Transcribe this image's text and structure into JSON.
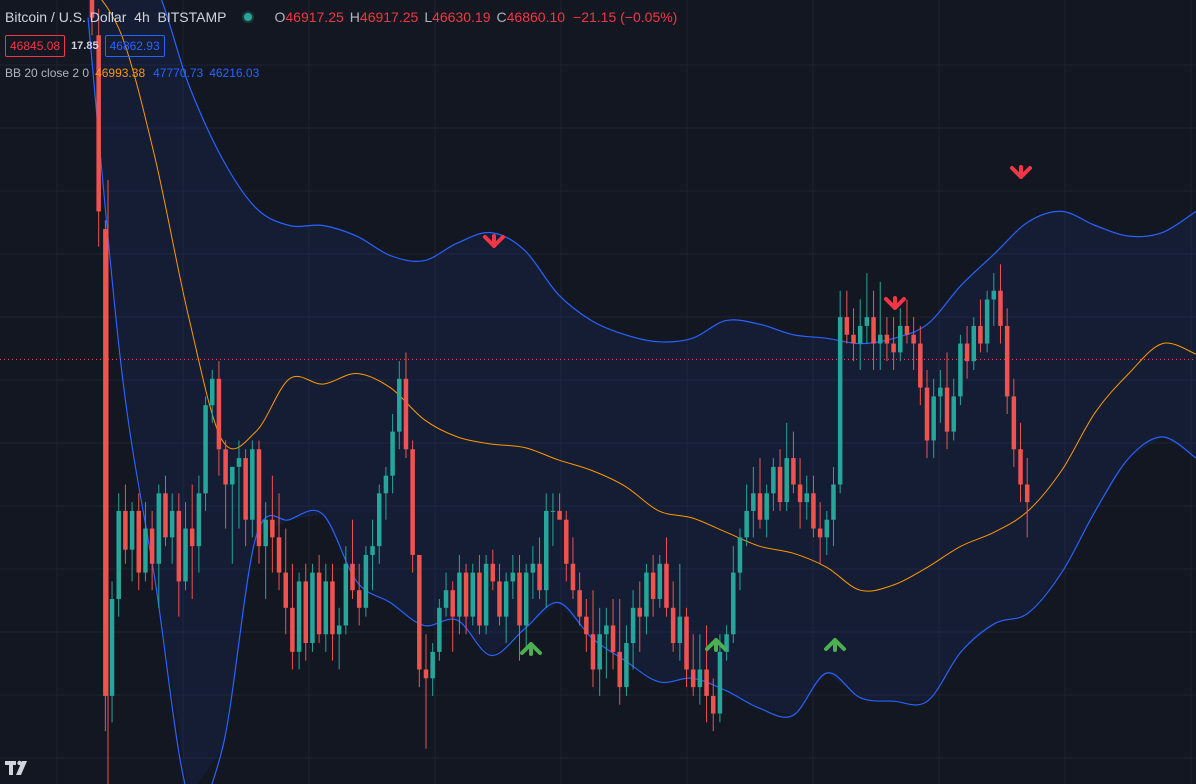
{
  "legend": {
    "symbol": "Bitcoin / U.S. Dollar",
    "interval": "4h",
    "exchange": "BITSTAMP",
    "open_label": "O",
    "open": "46917.25",
    "high_label": "H",
    "high": "46917.25",
    "low_label": "L",
    "low": "46630.19",
    "close_label": "C",
    "close": "46860.10",
    "change": "−21.15 (−0.05%)"
  },
  "quote": {
    "bid": "46845.08",
    "spread": "17.85",
    "ask": "46862.93"
  },
  "indicator": {
    "name": "BB 20 close 2 0",
    "basis": "46993.38",
    "upper": "47770.73",
    "lower": "46216.03"
  },
  "colors": {
    "bull": "#26a69a",
    "bear": "#ef5350",
    "basis": "#ff9800",
    "band": "#2962ff",
    "arrow_down": "#f23645",
    "arrow_up": "#4caf50",
    "background": "#131722",
    "grid": "#1e2330"
  },
  "icons": {
    "status": "market-open-dot-icon",
    "logo": "tradingview-logo-icon"
  },
  "chart_data": {
    "type": "candlestick",
    "y_range": [
      44450,
      48900
    ],
    "price_line": 46860.1,
    "band_upper": [
      49200,
      49080,
      48980,
      48420,
      48000,
      47720,
      47620,
      47620,
      47560,
      47450,
      47420,
      47520,
      47580,
      47480,
      47230,
      47080,
      47000,
      46960,
      46980,
      47080,
      47060,
      47000,
      46980,
      46950,
      46980,
      47060,
      47280,
      47460,
      47640,
      47700,
      47620,
      47560,
      47580,
      47700
    ],
    "band_basis": [
      49000,
      48700,
      48000,
      47100,
      46400,
      46450,
      46750,
      46720,
      46780,
      46700,
      46520,
      46420,
      46380,
      46360,
      46290,
      46230,
      46140,
      46000,
      45960,
      45880,
      45800,
      45760,
      45680,
      45550,
      45580,
      45680,
      45800,
      45880,
      46000,
      46230,
      46560,
      46780,
      46950,
      46890
    ],
    "band_lower": [
      48800,
      46800,
      45600,
      44380,
      44650,
      45850,
      45950,
      45980,
      45600,
      45480,
      45350,
      45380,
      45180,
      45330,
      45480,
      45280,
      45150,
      45030,
      45050,
      44980,
      44880,
      44840,
      45080,
      44940,
      44920,
      44920,
      45200,
      45360,
      45420,
      45650,
      46000,
      46300,
      46420,
      46300
    ],
    "candles": [
      [
        48900,
        48950,
        48700,
        48800
      ],
      [
        48700,
        48850,
        47500,
        47700
      ],
      [
        47600,
        47650,
        44750,
        44950
      ],
      [
        44950,
        45600,
        44800,
        45500
      ],
      [
        45500,
        46100,
        45400,
        46000
      ],
      [
        46000,
        46150,
        45700,
        45780
      ],
      [
        45780,
        46050,
        45600,
        46000
      ],
      [
        46000,
        46100,
        45550,
        45650
      ],
      [
        45650,
        46050,
        45600,
        45900
      ],
      [
        45900,
        46000,
        45550,
        45700
      ],
      [
        45700,
        46150,
        45450,
        46100
      ],
      [
        46100,
        46200,
        45800,
        45850
      ],
      [
        45850,
        46100,
        45700,
        46000
      ],
      [
        46000,
        46100,
        45400,
        45600
      ],
      [
        45600,
        46050,
        45550,
        45900
      ],
      [
        45900,
        46150,
        45500,
        45800
      ],
      [
        45800,
        46200,
        45650,
        46100
      ],
      [
        46100,
        46650,
        46000,
        46600
      ],
      [
        46600,
        46800,
        46500,
        46750
      ],
      [
        46750,
        46850,
        46200,
        46350
      ],
      [
        46350,
        46400,
        45900,
        46150
      ],
      [
        46150,
        46250,
        45700,
        46250
      ],
      [
        46250,
        46400,
        45900,
        46300
      ],
      [
        46300,
        46350,
        45800,
        45950
      ],
      [
        45950,
        46400,
        45850,
        46350
      ],
      [
        46350,
        46400,
        45700,
        45800
      ],
      [
        45800,
        46050,
        45500,
        45950
      ],
      [
        45950,
        46200,
        45650,
        45850
      ],
      [
        45850,
        46100,
        45550,
        45650
      ],
      [
        45650,
        45900,
        45300,
        45450
      ],
      [
        45450,
        45700,
        45100,
        45200
      ],
      [
        45200,
        45650,
        45100,
        45600
      ],
      [
        45600,
        45700,
        45150,
        45250
      ],
      [
        45250,
        45700,
        45200,
        45650
      ],
      [
        45650,
        45750,
        45250,
        45300
      ],
      [
        45300,
        45700,
        45200,
        45600
      ],
      [
        45600,
        45700,
        45150,
        45300
      ],
      [
        45300,
        45450,
        45100,
        45350
      ],
      [
        45350,
        45800,
        45300,
        45700
      ],
      [
        45700,
        45950,
        45500,
        45550
      ],
      [
        45550,
        45700,
        45350,
        45450
      ],
      [
        45450,
        45800,
        45400,
        45750
      ],
      [
        45750,
        45950,
        45550,
        45800
      ],
      [
        45800,
        46150,
        45700,
        46100
      ],
      [
        46100,
        46250,
        45950,
        46200
      ],
      [
        46200,
        46550,
        46100,
        46450
      ],
      [
        46450,
        46850,
        46350,
        46750
      ],
      [
        46750,
        46900,
        46300,
        46350
      ],
      [
        46350,
        46400,
        45650,
        45750
      ],
      [
        45750,
        45750,
        45000,
        45100
      ],
      [
        45100,
        45300,
        44650,
        45050
      ],
      [
        45050,
        45250,
        44950,
        45200
      ],
      [
        45200,
        45500,
        45150,
        45450
      ],
      [
        45450,
        45650,
        45400,
        45550
      ],
      [
        45550,
        45600,
        45200,
        45400
      ],
      [
        45400,
        45750,
        45300,
        45650
      ],
      [
        45650,
        45700,
        45300,
        45400
      ],
      [
        45400,
        45700,
        45350,
        45650
      ],
      [
        45650,
        45750,
        45300,
        45350
      ],
      [
        45350,
        45750,
        45300,
        45700
      ],
      [
        45700,
        45780,
        45550,
        45600
      ],
      [
        45600,
        45700,
        45350,
        45400
      ],
      [
        45400,
        45650,
        45250,
        45600
      ],
      [
        45600,
        45750,
        45500,
        45650
      ],
      [
        45650,
        45750,
        45150,
        45350
      ],
      [
        45350,
        45700,
        45200,
        45650
      ],
      [
        45650,
        45800,
        45500,
        45700
      ],
      [
        45700,
        45850,
        45500,
        45550
      ],
      [
        45550,
        46100,
        45450,
        46000
      ],
      [
        46000,
        46100,
        45800,
        46000
      ],
      [
        46000,
        46100,
        45950,
        45950
      ],
      [
        45950,
        46000,
        45600,
        45700
      ],
      [
        45700,
        45850,
        45500,
        45550
      ],
      [
        45550,
        45650,
        45350,
        45400
      ],
      [
        45400,
        45500,
        45200,
        45300
      ],
      [
        45300,
        45550,
        45000,
        45100
      ],
      [
        45100,
        45450,
        44950,
        45300
      ],
      [
        45300,
        45450,
        45050,
        45350
      ],
      [
        45350,
        45500,
        45100,
        45200
      ],
      [
        45200,
        45500,
        44900,
        45000
      ],
      [
        45000,
        45350,
        44950,
        45250
      ],
      [
        45250,
        45550,
        45100,
        45450
      ],
      [
        45450,
        45600,
        45200,
        45400
      ],
      [
        45400,
        45700,
        45300,
        45650
      ],
      [
        45650,
        45750,
        45400,
        45500
      ],
      [
        45500,
        45750,
        45450,
        45700
      ],
      [
        45700,
        45850,
        45400,
        45450
      ],
      [
        45450,
        45600,
        45200,
        45250
      ],
      [
        45250,
        45700,
        45150,
        45400
      ],
      [
        45400,
        45450,
        45000,
        45100
      ],
      [
        45100,
        45300,
        44950,
        45000
      ],
      [
        45000,
        45300,
        44900,
        45100
      ],
      [
        45100,
        45350,
        44800,
        44950
      ],
      [
        44950,
        45050,
        44750,
        44850
      ],
      [
        44850,
        45300,
        44800,
        45200
      ],
      [
        45200,
        45350,
        45150,
        45300
      ],
      [
        45300,
        45800,
        45250,
        45650
      ],
      [
        45650,
        45900,
        45550,
        45850
      ],
      [
        45850,
        46150,
        45800,
        46000
      ],
      [
        46000,
        46250,
        45850,
        46100
      ],
      [
        46100,
        46300,
        45900,
        45950
      ],
      [
        45950,
        46150,
        45850,
        46100
      ],
      [
        46100,
        46300,
        46000,
        46250
      ],
      [
        46250,
        46350,
        46000,
        46050
      ],
      [
        46050,
        46500,
        46000,
        46300
      ],
      [
        46300,
        46450,
        46100,
        46150
      ],
      [
        46150,
        46300,
        45900,
        46050
      ],
      [
        46050,
        46200,
        45950,
        46100
      ],
      [
        46100,
        46200,
        45850,
        45900
      ],
      [
        45900,
        46050,
        45700,
        45850
      ],
      [
        45850,
        46000,
        45750,
        45950
      ],
      [
        45950,
        46250,
        45800,
        46150
      ],
      [
        46150,
        47250,
        46100,
        47100
      ],
      [
        47100,
        47250,
        46950,
        47000
      ],
      [
        47000,
        47150,
        46850,
        46950
      ],
      [
        46950,
        47200,
        46800,
        47050
      ],
      [
        47050,
        47350,
        46950,
        47100
      ],
      [
        47100,
        47250,
        46800,
        46950
      ],
      [
        46950,
        47300,
        46800,
        47000
      ],
      [
        47000,
        47100,
        46850,
        46950
      ],
      [
        46950,
        47100,
        46800,
        46900
      ],
      [
        46900,
        47150,
        46850,
        47050
      ],
      [
        47050,
        47200,
        46950,
        47000
      ],
      [
        47000,
        47100,
        46800,
        46950
      ],
      [
        46950,
        47050,
        46600,
        46700
      ],
      [
        46700,
        46800,
        46300,
        46400
      ],
      [
        46400,
        46750,
        46300,
        46650
      ],
      [
        46650,
        46800,
        46500,
        46700
      ],
      [
        46700,
        46900,
        46350,
        46450
      ],
      [
        46450,
        46750,
        46400,
        46650
      ],
      [
        46650,
        47000,
        46600,
        46950
      ],
      [
        46950,
        47050,
        46750,
        46850
      ],
      [
        46850,
        47100,
        46800,
        47050
      ],
      [
        47050,
        47200,
        46900,
        46950
      ],
      [
        46950,
        47250,
        46900,
        47200
      ],
      [
        47200,
        47350,
        47050,
        47250
      ],
      [
        47250,
        47400,
        46950,
        47050
      ],
      [
        47050,
        47150,
        46550,
        46650
      ],
      [
        46650,
        46750,
        46250,
        46350
      ],
      [
        46350,
        46500,
        46050,
        46150
      ],
      [
        46150,
        46300,
        45850,
        46050
      ]
    ]
  }
}
